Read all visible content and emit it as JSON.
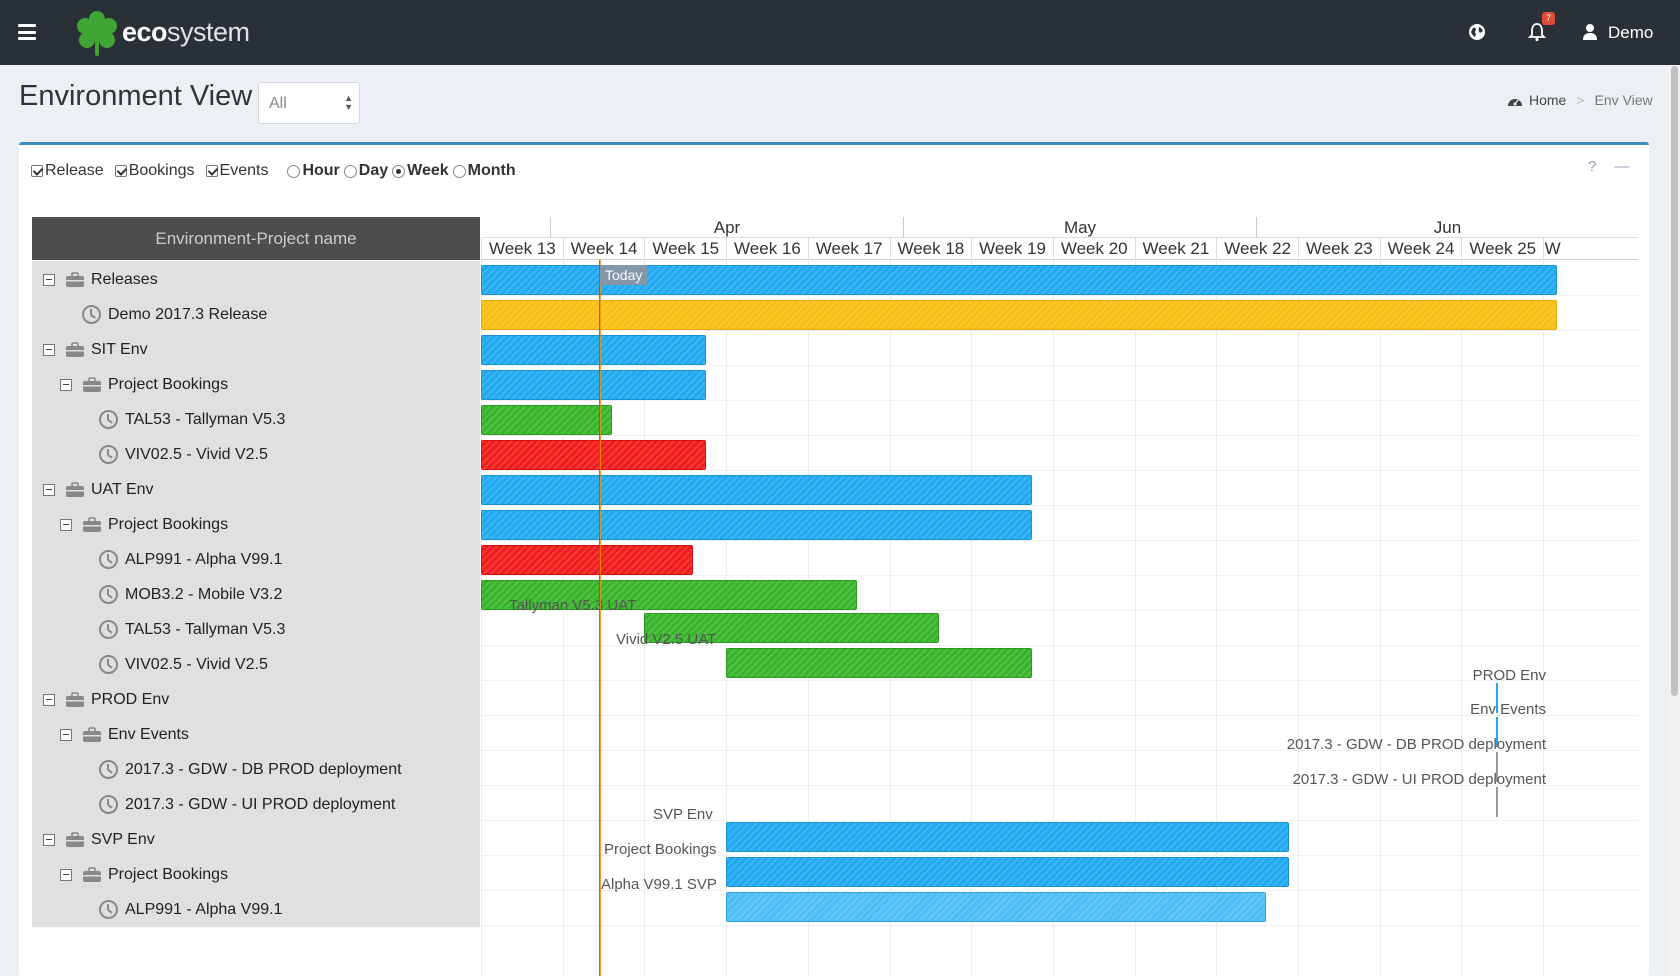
{
  "topbar": {
    "brand_bold": "eco",
    "brand_rest": "system",
    "notification_count": "7",
    "user": "Demo"
  },
  "page": {
    "title": "Environment View",
    "select_value": "All"
  },
  "breadcrumb": {
    "home": "Home",
    "separator": ">",
    "current": "Env View"
  },
  "options": {
    "release": "Release",
    "bookings": "Bookings",
    "events": "Events",
    "hour": "Hour",
    "day": "Day",
    "week": "Week",
    "month": "Month"
  },
  "box_tools": {
    "help": "?",
    "minimize": "—"
  },
  "gantt": {
    "left_header": "Environment-Project name",
    "months": [
      "Apr",
      "May",
      "Jun"
    ],
    "weeks": [
      "Week 13",
      "Week 14",
      "Week 15",
      "Week 16",
      "Week 17",
      "Week 18",
      "Week 19",
      "Week 20",
      "Week 21",
      "Week 22",
      "Week 23",
      "Week 24",
      "Week 25",
      "W"
    ],
    "today_label": "Today",
    "rows": [
      {
        "label": "Releases",
        "level": 0,
        "kind": "group"
      },
      {
        "label": "Demo 2017.3 Release",
        "level": 1,
        "kind": "item"
      },
      {
        "label": "SIT Env",
        "level": 0,
        "kind": "group"
      },
      {
        "label": "Project Bookings",
        "level": 1,
        "kind": "group"
      },
      {
        "label": "TAL53 - Tallyman V5.3",
        "level": 2,
        "kind": "item"
      },
      {
        "label": "VIV02.5 - Vivid V2.5",
        "level": 2,
        "kind": "item"
      },
      {
        "label": "UAT Env",
        "level": 0,
        "kind": "group"
      },
      {
        "label": "Project Bookings",
        "level": 1,
        "kind": "group"
      },
      {
        "label": "ALP991 - Alpha V99.1",
        "level": 2,
        "kind": "item"
      },
      {
        "label": "MOB3.2 - Mobile V3.2",
        "level": 2,
        "kind": "item"
      },
      {
        "label": "TAL53 - Tallyman V5.3",
        "level": 2,
        "kind": "item"
      },
      {
        "label": "VIV02.5 - Vivid V2.5",
        "level": 2,
        "kind": "item"
      },
      {
        "label": "PROD Env",
        "level": 0,
        "kind": "group"
      },
      {
        "label": "Env Events",
        "level": 1,
        "kind": "group"
      },
      {
        "label": "2017.3 - GDW - DB PROD deployment",
        "level": 2,
        "kind": "item"
      },
      {
        "label": "2017.3 - GDW - UI PROD deployment",
        "level": 2,
        "kind": "item"
      },
      {
        "label": "SVP Env",
        "level": 0,
        "kind": "group"
      },
      {
        "label": "Project Bookings",
        "level": 1,
        "kind": "group"
      },
      {
        "label": "ALP991 - Alpha V99.1",
        "level": 2,
        "kind": "item"
      }
    ],
    "bar_labels": {
      "tallyman_uat": "Tallyman V5.3 UAT",
      "vivid_uat": "Vivid V2.5 UAT",
      "prod_env": "PROD Env",
      "env_events": "Env Events",
      "db_deploy": "2017.3 - GDW - DB PROD deployment",
      "ui_deploy": "2017.3 - GDW - UI PROD deployment",
      "svp_env": "SVP Env",
      "svp_bookings": "Project Bookings",
      "alpha_svp": "Alpha V99.1 SVP"
    }
  },
  "colors": {
    "topbar": "#2a3037",
    "accent": "#3c8dbc",
    "bar_blue": "#1fa9f0",
    "bar_orange": "#f7c012",
    "bar_green": "#38b42b",
    "bar_red": "#f21b1b"
  }
}
